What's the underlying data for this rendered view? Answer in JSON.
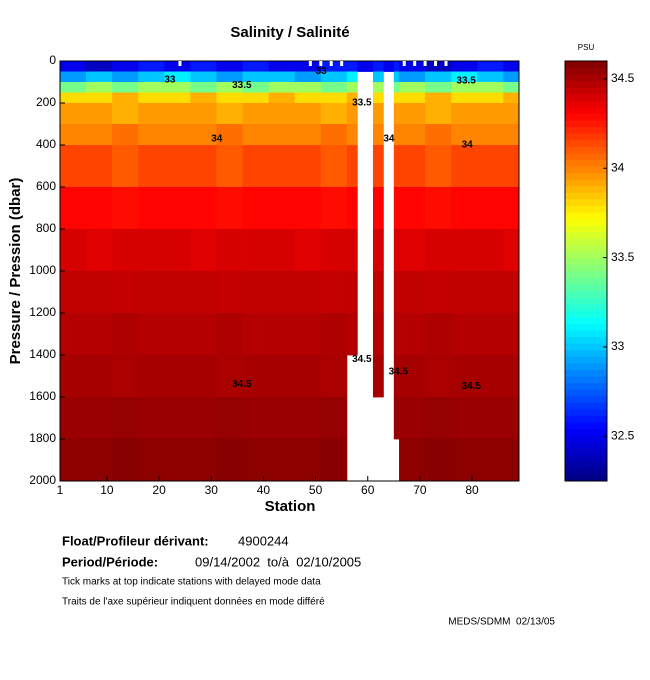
{
  "chart_data": {
    "type": "heatmap",
    "title": "Salinity / Salinité",
    "x_label": "Station",
    "y_label": "Pressure / Pression (dbar)",
    "colorbar_label": "PSU",
    "x_edges": [
      1,
      6,
      11,
      16,
      21,
      26,
      31,
      36,
      41,
      46,
      51,
      56,
      58,
      61,
      63,
      65,
      66,
      71,
      76,
      81,
      86,
      89
    ],
    "y_edges": [
      0,
      50,
      100,
      150,
      200,
      300,
      400,
      600,
      800,
      1000,
      1200,
      1400,
      1600,
      1800,
      2000
    ],
    "z": [
      [
        32.5,
        32.4,
        32.5,
        32.6,
        32.5,
        32.6,
        32.5,
        32.6,
        32.5,
        32.5,
        32.6,
        32.6,
        32.5,
        32.6,
        32.5,
        32.6,
        32.5,
        32.4,
        32.5,
        32.6,
        32.5
      ],
      [
        32.9,
        33.0,
        32.9,
        33.0,
        33.1,
        33.0,
        32.9,
        33.0,
        33.0,
        32.9,
        33.0,
        33.1,
        null,
        33.0,
        null,
        33.0,
        32.9,
        33.0,
        33.1,
        33.0,
        32.9
      ],
      [
        33.4,
        33.5,
        33.4,
        33.5,
        33.5,
        33.4,
        33.5,
        33.4,
        33.5,
        33.5,
        33.4,
        33.5,
        null,
        33.5,
        null,
        33.4,
        33.5,
        33.4,
        33.5,
        33.5,
        33.4
      ],
      [
        33.8,
        33.8,
        33.9,
        33.8,
        33.8,
        33.9,
        33.8,
        33.8,
        33.9,
        33.8,
        33.8,
        33.9,
        null,
        33.8,
        null,
        33.8,
        33.8,
        33.9,
        33.8,
        33.8,
        33.9
      ],
      [
        33.95,
        33.95,
        33.9,
        33.95,
        33.95,
        33.95,
        33.9,
        33.95,
        33.95,
        33.95,
        33.9,
        33.95,
        null,
        33.95,
        null,
        33.95,
        33.95,
        33.9,
        33.95,
        33.95,
        33.95
      ],
      [
        34.0,
        34.0,
        34.05,
        34.0,
        34.0,
        34.0,
        34.05,
        34.0,
        34.0,
        34.0,
        34.05,
        34.0,
        null,
        34.0,
        null,
        34.0,
        34.0,
        34.05,
        34.0,
        34.0,
        34.0
      ],
      [
        34.15,
        34.15,
        34.1,
        34.15,
        34.15,
        34.15,
        34.1,
        34.15,
        34.15,
        34.15,
        34.1,
        34.15,
        null,
        34.15,
        null,
        34.15,
        34.15,
        34.1,
        34.15,
        34.15,
        34.15
      ],
      [
        34.3,
        34.3,
        34.28,
        34.3,
        34.3,
        34.3,
        34.28,
        34.3,
        34.3,
        34.3,
        34.28,
        34.3,
        null,
        34.3,
        null,
        34.3,
        34.3,
        34.28,
        34.3,
        34.3,
        34.3
      ],
      [
        34.4,
        34.38,
        34.4,
        34.4,
        34.4,
        34.38,
        34.4,
        34.4,
        34.4,
        34.38,
        34.4,
        34.4,
        null,
        34.4,
        null,
        34.4,
        34.38,
        34.4,
        34.4,
        34.4,
        34.38
      ],
      [
        34.45,
        34.45,
        34.44,
        34.45,
        34.45,
        34.45,
        34.44,
        34.45,
        34.45,
        34.45,
        34.44,
        34.45,
        null,
        34.45,
        null,
        34.45,
        34.45,
        34.44,
        34.45,
        34.45,
        34.45
      ],
      [
        34.48,
        34.48,
        34.49,
        34.48,
        34.48,
        34.48,
        34.49,
        34.48,
        34.48,
        34.48,
        34.49,
        34.48,
        null,
        34.48,
        null,
        34.48,
        34.48,
        34.49,
        34.48,
        34.48,
        34.48
      ],
      [
        34.51,
        34.51,
        34.5,
        34.51,
        34.51,
        34.51,
        34.5,
        34.51,
        34.51,
        34.51,
        34.5,
        null,
        null,
        34.51,
        null,
        34.51,
        34.51,
        34.5,
        34.51,
        34.51,
        34.51
      ],
      [
        34.54,
        34.54,
        34.55,
        34.54,
        34.54,
        34.54,
        34.55,
        34.54,
        34.54,
        34.54,
        34.55,
        null,
        null,
        null,
        null,
        34.54,
        34.54,
        34.55,
        34.54,
        34.54,
        34.54
      ],
      [
        34.57,
        34.57,
        34.58,
        34.57,
        34.57,
        34.57,
        34.58,
        34.57,
        34.57,
        34.57,
        34.58,
        null,
        null,
        null,
        null,
        null,
        34.57,
        34.58,
        34.57,
        34.57,
        34.57
      ]
    ],
    "xlim": [
      1,
      89
    ],
    "xticks": [
      1,
      10,
      20,
      30,
      40,
      50,
      60,
      70,
      80
    ],
    "ylim": [
      2000,
      0
    ],
    "yticks": [
      0,
      200,
      400,
      600,
      800,
      1000,
      1200,
      1400,
      1600,
      1800,
      2000
    ],
    "clim": [
      32.25,
      34.6
    ],
    "cticks": [
      32.5,
      33,
      33.5,
      34,
      34.5
    ],
    "colormap": "jet",
    "delayed_mode_stations": [
      24,
      49,
      51,
      53,
      55,
      67,
      69,
      71,
      73,
      75
    ],
    "annotations": [
      {
        "text": "33",
        "x": 21,
        "y": 90
      },
      {
        "text": "33.5",
        "x": 34,
        "y": 115
      },
      {
        "text": "33",
        "x": 50,
        "y": 50
      },
      {
        "text": "33.5",
        "x": 57,
        "y": 200
      },
      {
        "text": "34",
        "x": 30,
        "y": 370
      },
      {
        "text": "34",
        "x": 63,
        "y": 370
      },
      {
        "text": "34",
        "x": 78,
        "y": 400
      },
      {
        "text": "33.5",
        "x": 77,
        "y": 95
      },
      {
        "text": "34.5",
        "x": 34,
        "y": 1540
      },
      {
        "text": "34.5",
        "x": 57,
        "y": 1420
      },
      {
        "text": "34.5",
        "x": 64,
        "y": 1480
      },
      {
        "text": "34.5",
        "x": 78,
        "y": 1550
      }
    ],
    "float_label": "Float/Profileur dérivant:",
    "float_id": "4900244",
    "period_label": "Period/Période:",
    "period": "09/14/2002  to/à  02/10/2005",
    "note_en": "Tick marks at top indicate stations with delayed mode data",
    "note_fr": "Traits de l'axe supérieur indiquent données en mode différé",
    "credit": "MEDS/SDMM  02/13/05"
  }
}
